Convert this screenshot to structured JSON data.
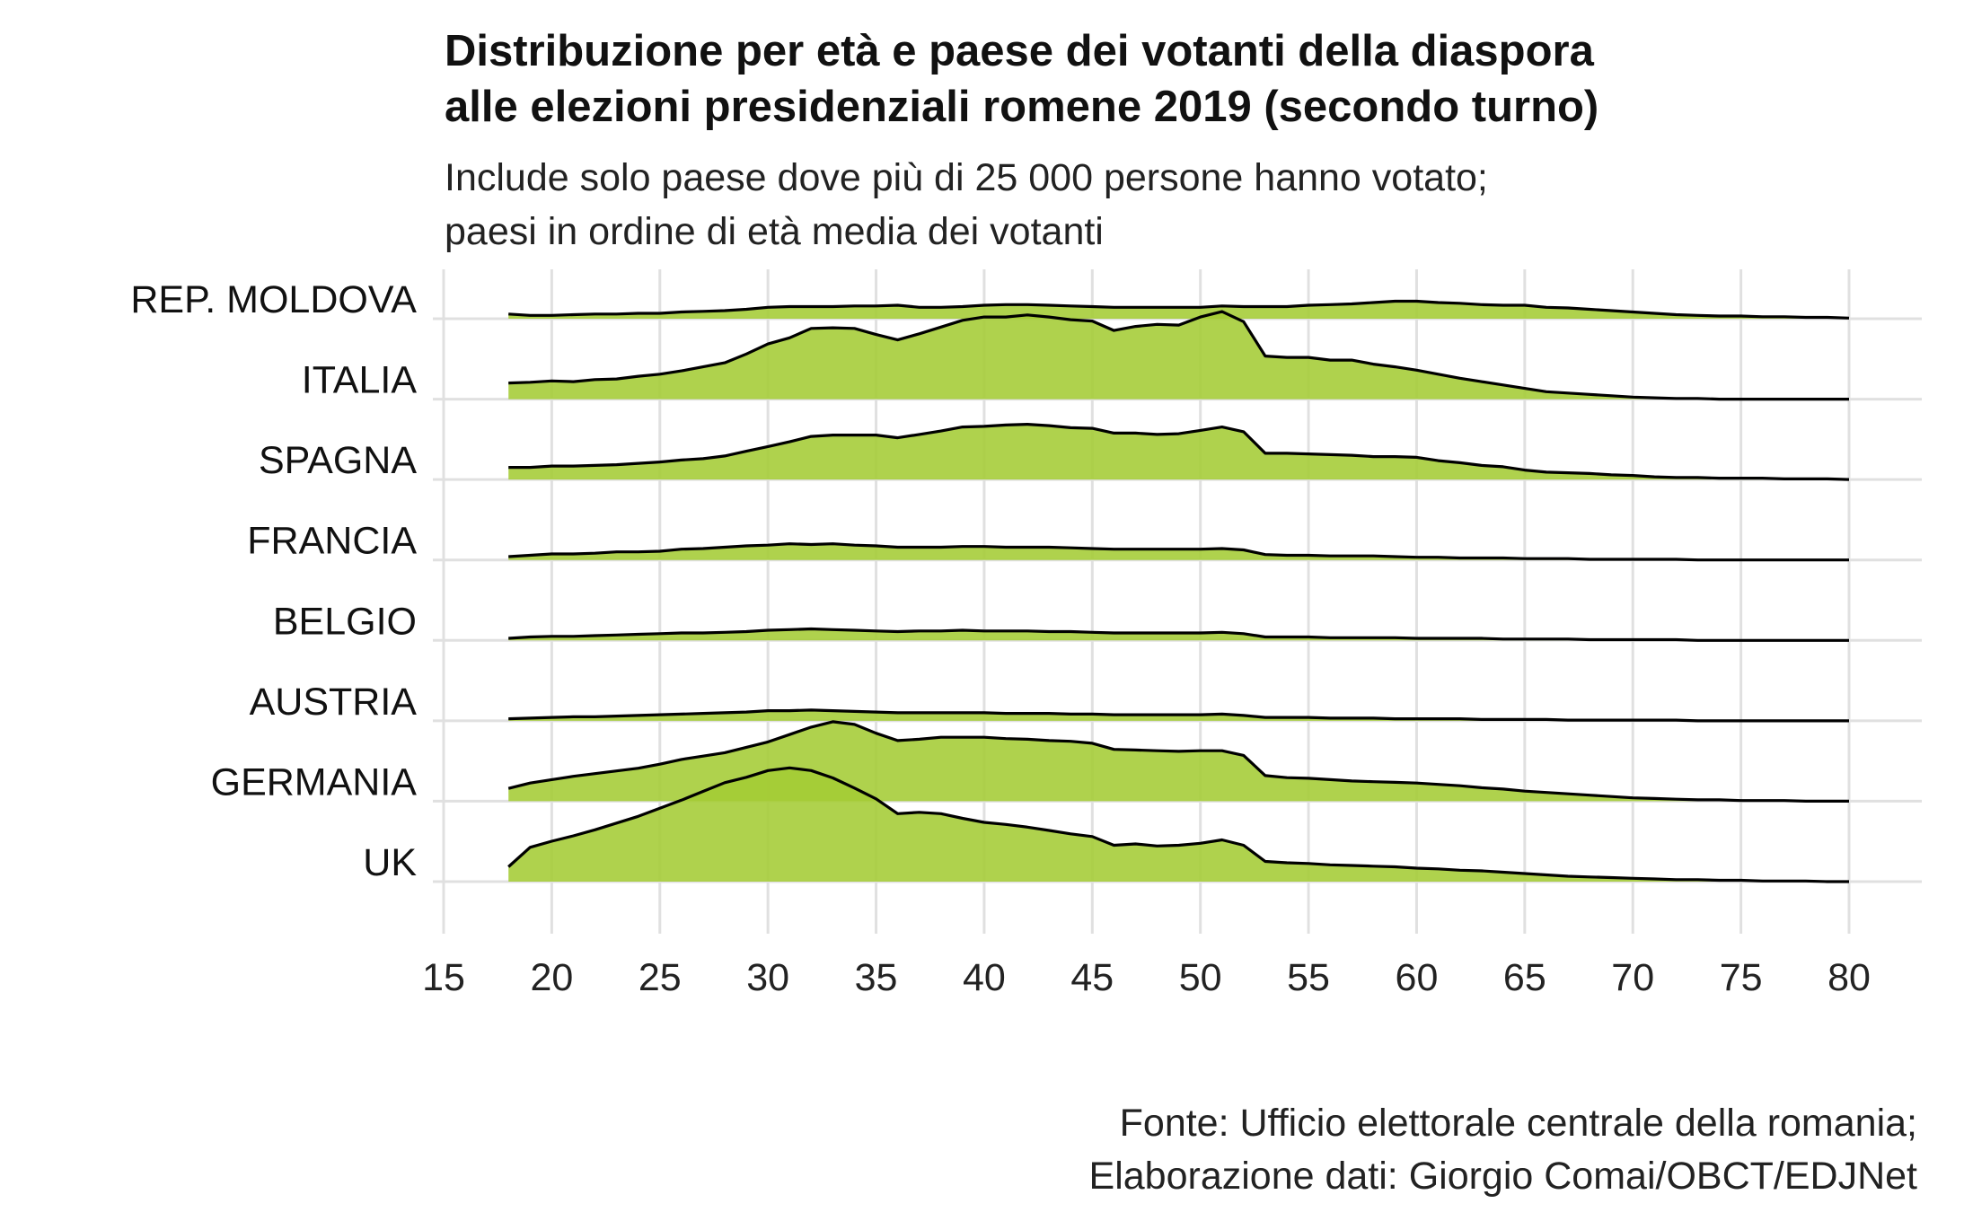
{
  "title_line1": "Distribuzione per età e paese dei votanti della diaspora",
  "title_line2": "alle elezioni presidenziali romene 2019 (secondo turno)",
  "subtitle_line1": "Include solo paese dove più di 25 000 persone hanno votato;",
  "subtitle_line2": "paesi in ordine di età media dei votanti",
  "caption_line1": "Fonte: Ufficio elettorale centrale della romania;",
  "caption_line2": "Elaborazione dati: Giorgio Comai/OBCT/EDJNet",
  "colors": {
    "fill": "#a4cc34",
    "line": "#000000",
    "grid": "#e0e0e0"
  },
  "chart_data": {
    "type": "area",
    "subtype": "ridgeline",
    "x_ticks": [
      15,
      20,
      25,
      30,
      35,
      40,
      45,
      50,
      55,
      60,
      65,
      70,
      75,
      80
    ],
    "xlim": [
      15,
      80
    ],
    "x": [
      18,
      19,
      20,
      21,
      22,
      23,
      24,
      25,
      26,
      27,
      28,
      29,
      30,
      31,
      32,
      33,
      34,
      35,
      36,
      37,
      38,
      39,
      40,
      41,
      42,
      43,
      44,
      45,
      46,
      47,
      48,
      49,
      50,
      51,
      52,
      53,
      54,
      55,
      56,
      57,
      58,
      59,
      60,
      61,
      62,
      63,
      64,
      65,
      66,
      67,
      68,
      69,
      70,
      71,
      72,
      73,
      74,
      75,
      76,
      77,
      78,
      79,
      80
    ],
    "series": [
      {
        "name": "REP. MOLDOVA",
        "values": [
          7,
          5,
          5,
          6,
          7,
          7,
          8,
          8,
          10,
          11,
          12,
          14,
          17,
          18,
          18,
          18,
          19,
          19,
          20,
          17,
          17,
          18,
          20,
          21,
          21,
          20,
          19,
          18,
          17,
          17,
          17,
          17,
          17,
          19,
          18,
          18,
          18,
          20,
          21,
          22,
          24,
          26,
          26,
          24,
          23,
          21,
          20,
          20,
          17,
          16,
          14,
          12,
          10,
          8,
          6,
          5,
          4,
          4,
          3,
          3,
          2,
          2,
          1
        ]
      },
      {
        "name": "ITALIA",
        "values": [
          24,
          25,
          27,
          26,
          29,
          30,
          34,
          37,
          42,
          48,
          54,
          67,
          82,
          91,
          105,
          106,
          105,
          96,
          88,
          97,
          107,
          117,
          122,
          122,
          125,
          122,
          118,
          116,
          102,
          108,
          111,
          110,
          122,
          130,
          115,
          64,
          62,
          62,
          58,
          58,
          52,
          48,
          43,
          37,
          31,
          26,
          21,
          16,
          11,
          9,
          7,
          5,
          3,
          2,
          1,
          1,
          0,
          0,
          0,
          0,
          0,
          0,
          0
        ]
      },
      {
        "name": "SPAGNA",
        "values": [
          18,
          18,
          20,
          20,
          21,
          22,
          24,
          26,
          29,
          31,
          35,
          42,
          49,
          56,
          64,
          66,
          66,
          66,
          62,
          67,
          72,
          78,
          79,
          81,
          82,
          80,
          77,
          76,
          69,
          69,
          67,
          68,
          73,
          78,
          71,
          39,
          39,
          38,
          37,
          36,
          34,
          34,
          33,
          28,
          25,
          21,
          19,
          14,
          11,
          10,
          9,
          7,
          6,
          4,
          3,
          3,
          2,
          2,
          2,
          1,
          1,
          1,
          0
        ]
      },
      {
        "name": "FRANCIA",
        "values": [
          5,
          7,
          9,
          9,
          10,
          12,
          12,
          13,
          16,
          17,
          19,
          21,
          22,
          24,
          23,
          24,
          22,
          21,
          19,
          19,
          19,
          20,
          20,
          19,
          19,
          19,
          18,
          17,
          16,
          16,
          16,
          16,
          16,
          17,
          15,
          8,
          7,
          7,
          6,
          6,
          6,
          5,
          4,
          4,
          3,
          3,
          3,
          2,
          2,
          2,
          1,
          1,
          1,
          1,
          1,
          0,
          0,
          0,
          0,
          0,
          0,
          0,
          0
        ]
      },
      {
        "name": "BELGIO",
        "values": [
          3,
          5,
          6,
          6,
          7,
          8,
          9,
          10,
          11,
          11,
          12,
          13,
          15,
          16,
          17,
          16,
          15,
          14,
          13,
          14,
          14,
          15,
          14,
          14,
          14,
          13,
          13,
          12,
          11,
          11,
          11,
          11,
          11,
          12,
          10,
          5,
          5,
          5,
          4,
          4,
          4,
          4,
          3,
          3,
          3,
          3,
          2,
          2,
          2,
          2,
          1,
          1,
          1,
          1,
          1,
          0,
          0,
          0,
          0,
          0,
          0,
          0,
          0
        ]
      },
      {
        "name": "AUSTRIA",
        "values": [
          3,
          4,
          5,
          6,
          6,
          7,
          8,
          9,
          10,
          11,
          12,
          13,
          15,
          15,
          16,
          15,
          14,
          13,
          12,
          12,
          12,
          12,
          12,
          11,
          11,
          11,
          10,
          10,
          9,
          9,
          9,
          9,
          9,
          10,
          8,
          5,
          5,
          5,
          4,
          4,
          4,
          3,
          3,
          3,
          3,
          2,
          2,
          2,
          2,
          1,
          1,
          1,
          1,
          1,
          1,
          0,
          0,
          0,
          0,
          0,
          0,
          0,
          0
        ]
      },
      {
        "name": "GERMANIA",
        "values": [
          19,
          27,
          32,
          37,
          41,
          45,
          49,
          55,
          62,
          67,
          72,
          80,
          88,
          99,
          110,
          118,
          114,
          101,
          90,
          92,
          95,
          95,
          95,
          93,
          92,
          90,
          89,
          86,
          77,
          76,
          75,
          74,
          75,
          75,
          68,
          38,
          35,
          34,
          32,
          30,
          29,
          28,
          27,
          25,
          23,
          20,
          18,
          15,
          13,
          11,
          9,
          7,
          5,
          4,
          3,
          2,
          2,
          1,
          1,
          1,
          0,
          0,
          0
        ]
      },
      {
        "name": "UK",
        "values": [
          22,
          51,
          60,
          68,
          77,
          87,
          97,
          109,
          121,
          134,
          147,
          155,
          165,
          169,
          165,
          154,
          139,
          123,
          101,
          103,
          101,
          94,
          88,
          85,
          81,
          76,
          71,
          67,
          54,
          56,
          53,
          54,
          57,
          62,
          54,
          30,
          28,
          27,
          25,
          24,
          23,
          22,
          20,
          19,
          17,
          16,
          14,
          12,
          10,
          8,
          7,
          6,
          5,
          4,
          3,
          3,
          2,
          2,
          1,
          1,
          1,
          0,
          0
        ]
      }
    ]
  }
}
